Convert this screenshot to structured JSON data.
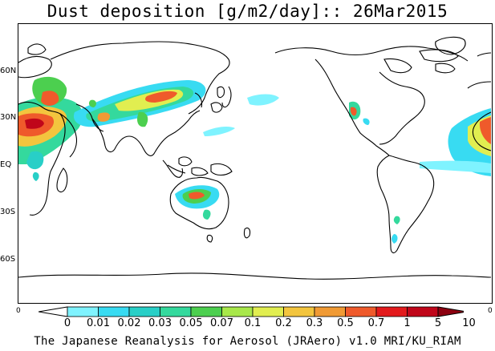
{
  "title": "Dust deposition [g/m2/day]:: 26Mar2015",
  "lat_labels": [
    "60N",
    "30N",
    "EQ",
    "30S",
    "60S"
  ],
  "edge_left": "0",
  "edge_right": "0",
  "colorbar": {
    "labels": [
      "0",
      "0.01",
      "0.02",
      "0.03",
      "0.05",
      "0.07",
      "0.1",
      "0.2",
      "0.3",
      "0.5",
      "0.7",
      "1",
      "5",
      "10"
    ],
    "colors": [
      "#ffffff",
      "#7ff3ff",
      "#38dbf2",
      "#28cfc7",
      "#34d99d",
      "#4ccf4f",
      "#a8e84a",
      "#e1ee50",
      "#f3c53e",
      "#f09a34",
      "#ef5a2b",
      "#e31a1c",
      "#c0061a",
      "#8c0010"
    ]
  },
  "credit": "The Japanese Reanalysis for Aerosol (JRAero) v1.0 MRI/KU_RIAM"
}
